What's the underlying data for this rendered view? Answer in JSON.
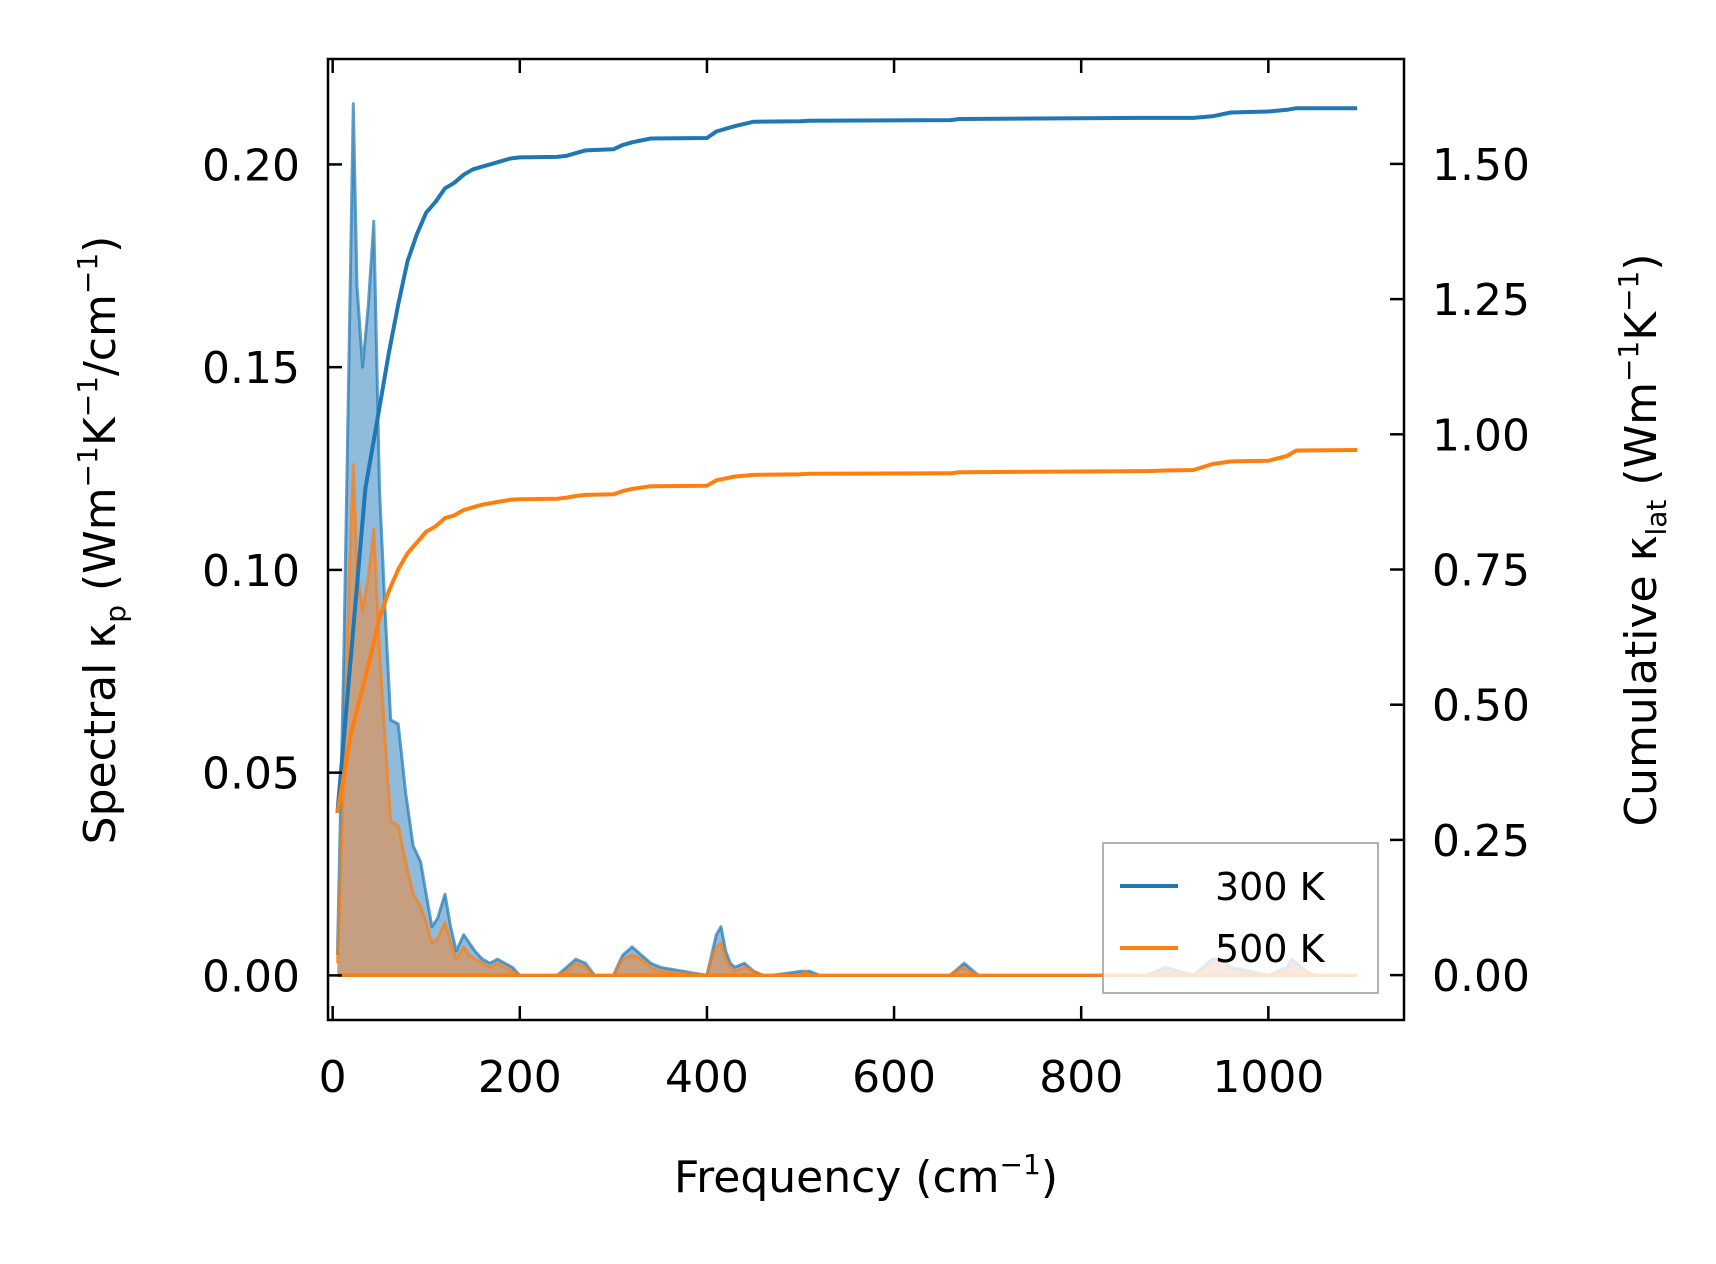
{
  "chart_data": {
    "type": "area",
    "xlabel": {
      "base": "Frequency (cm",
      "sup": "−1",
      "tail": ")"
    },
    "ylabel_left": {
      "p1": "Spectral κ",
      "sub": "p",
      "p2": " (Wm",
      "sup1": "−1",
      "p3": "K",
      "sup2": "−1",
      "p4": "/cm",
      "sup3": "−1",
      "p5": ")"
    },
    "ylabel_right": {
      "p1": "Cumulative κ",
      "sub": "lat",
      "p2": " (Wm",
      "sup1": "−1",
      "p3": "K",
      "sup2": "−1",
      "p4": ")"
    },
    "xlim": [
      -5,
      1145
    ],
    "ylim_left": [
      -0.011,
      0.226
    ],
    "ylim_right": [
      -0.083,
      1.694
    ],
    "x_ticks": [
      0,
      200,
      400,
      600,
      800,
      1000
    ],
    "x_tick_labels": [
      "0",
      "200",
      "400",
      "600",
      "800",
      "1000"
    ],
    "y_left_ticks": [
      0.0,
      0.05,
      0.1,
      0.15,
      0.2
    ],
    "y_left_tick_labels": [
      "0.00",
      "0.05",
      "0.10",
      "0.15",
      "0.20"
    ],
    "y_right_ticks": [
      0.0,
      0.25,
      0.5,
      0.75,
      1.0,
      1.25,
      1.5
    ],
    "y_right_tick_labels": [
      "0.00",
      "0.25",
      "0.50",
      "0.75",
      "1.00",
      "1.25",
      "1.50"
    ],
    "legend": {
      "position": "lower-right",
      "entries": [
        "300 K",
        "500 K"
      ]
    },
    "colors": {
      "s300": "#1f77b4",
      "s500": "#ff7f0e",
      "fill300": "#6aa4d1",
      "fill500": "#cf9a6f"
    },
    "series": [
      {
        "name": "300 K",
        "spectral": {
          "x": [
            5,
            12,
            18,
            22,
            26,
            32,
            38,
            44,
            50,
            56,
            62,
            70,
            78,
            86,
            94,
            100,
            106,
            112,
            120,
            126,
            132,
            140,
            146,
            152,
            160,
            168,
            176,
            184,
            192,
            200,
            220,
            240,
            250,
            260,
            270,
            280,
            290,
            300,
            310,
            320,
            330,
            340,
            350,
            400,
            405,
            410,
            415,
            420,
            425,
            430,
            440,
            450,
            460,
            470,
            500,
            505,
            510,
            520,
            540,
            560,
            660,
            665,
            670,
            675,
            680,
            690,
            870,
            880,
            890,
            920,
            930,
            940,
            950,
            960,
            1000,
            1010,
            1020,
            1025,
            1030,
            1040,
            1050,
            1060,
            1095
          ],
          "y": [
            0.005,
            0.08,
            0.16,
            0.215,
            0.17,
            0.15,
            0.165,
            0.186,
            0.12,
            0.09,
            0.063,
            0.062,
            0.045,
            0.032,
            0.028,
            0.02,
            0.012,
            0.014,
            0.02,
            0.012,
            0.006,
            0.01,
            0.008,
            0.006,
            0.004,
            0.003,
            0.004,
            0.003,
            0.002,
            0.0,
            0.0,
            0.0,
            0.002,
            0.004,
            0.003,
            0.0,
            0.0,
            0.0,
            0.005,
            0.007,
            0.005,
            0.003,
            0.002,
            0.0,
            0.005,
            0.01,
            0.012,
            0.006,
            0.003,
            0.002,
            0.003,
            0.001,
            0.0,
            0.0,
            0.001,
            0.001,
            0.001,
            0.0,
            0.0,
            0.0,
            0.0,
            0.001,
            0.002,
            0.003,
            0.002,
            0.0,
            0.0,
            0.001,
            0.002,
            0.0,
            0.002,
            0.004,
            0.004,
            0.002,
            0.0,
            0.001,
            0.002,
            0.004,
            0.003,
            0.001,
            0.0,
            0.0,
            0.0
          ]
        },
        "cumulative": {
          "x": [
            5,
            20,
            35,
            50,
            60,
            70,
            80,
            90,
            100,
            110,
            120,
            130,
            140,
            150,
            160,
            170,
            180,
            190,
            200,
            240,
            250,
            260,
            270,
            300,
            310,
            320,
            340,
            400,
            410,
            430,
            450,
            500,
            510,
            660,
            670,
            870,
            890,
            920,
            940,
            960,
            1000,
            1020,
            1030,
            1095
          ],
          "y": [
            0.3,
            0.6,
            0.9,
            1.05,
            1.15,
            1.24,
            1.32,
            1.37,
            1.41,
            1.43,
            1.455,
            1.465,
            1.48,
            1.49,
            1.495,
            1.5,
            1.505,
            1.51,
            1.512,
            1.513,
            1.515,
            1.52,
            1.525,
            1.527,
            1.535,
            1.54,
            1.547,
            1.548,
            1.56,
            1.57,
            1.578,
            1.579,
            1.58,
            1.581,
            1.583,
            1.585,
            1.585,
            1.585,
            1.588,
            1.595,
            1.597,
            1.6,
            1.603,
            1.603
          ]
        }
      },
      {
        "name": "500 K",
        "spectral": {
          "x": [
            5,
            12,
            18,
            22,
            26,
            32,
            38,
            44,
            50,
            56,
            62,
            70,
            78,
            86,
            94,
            100,
            106,
            112,
            120,
            126,
            132,
            140,
            146,
            152,
            160,
            168,
            176,
            184,
            192,
            200,
            220,
            240,
            250,
            260,
            270,
            280,
            290,
            300,
            310,
            320,
            330,
            340,
            350,
            400,
            405,
            410,
            415,
            420,
            425,
            430,
            440,
            450,
            460,
            470,
            500,
            505,
            510,
            520,
            540,
            560,
            660,
            665,
            670,
            675,
            680,
            690,
            870,
            880,
            890,
            920,
            930,
            940,
            950,
            960,
            1000,
            1010,
            1020,
            1025,
            1030,
            1040,
            1050,
            1060,
            1095
          ],
          "y": [
            0.003,
            0.05,
            0.1,
            0.126,
            0.1,
            0.09,
            0.098,
            0.11,
            0.08,
            0.058,
            0.038,
            0.037,
            0.028,
            0.02,
            0.017,
            0.013,
            0.008,
            0.009,
            0.013,
            0.008,
            0.004,
            0.007,
            0.005,
            0.004,
            0.003,
            0.002,
            0.003,
            0.002,
            0.001,
            0.0,
            0.0,
            0.0,
            0.001,
            0.003,
            0.002,
            0.0,
            0.0,
            0.0,
            0.004,
            0.005,
            0.004,
            0.002,
            0.001,
            0.0,
            0.004,
            0.007,
            0.008,
            0.004,
            0.002,
            0.001,
            0.002,
            0.001,
            0.0,
            0.0,
            0.0,
            0.001,
            0.0,
            0.0,
            0.0,
            0.0,
            0.0,
            0.001,
            0.0015,
            0.002,
            0.001,
            0.0,
            0.0,
            0.0005,
            0.001,
            0.0,
            0.001,
            0.003,
            0.003,
            0.001,
            0.0,
            0.0005,
            0.001,
            0.003,
            0.002,
            0.001,
            0.0,
            0.0,
            0.0
          ]
        },
        "cumulative": {
          "x": [
            5,
            20,
            35,
            50,
            60,
            70,
            80,
            90,
            100,
            110,
            120,
            130,
            140,
            150,
            160,
            170,
            180,
            190,
            200,
            240,
            250,
            260,
            270,
            300,
            310,
            320,
            340,
            400,
            410,
            430,
            450,
            500,
            510,
            660,
            670,
            870,
            890,
            920,
            940,
            960,
            1000,
            1020,
            1030,
            1095
          ],
          "y": [
            0.3,
            0.45,
            0.55,
            0.66,
            0.71,
            0.75,
            0.78,
            0.8,
            0.82,
            0.83,
            0.845,
            0.85,
            0.86,
            0.865,
            0.87,
            0.873,
            0.876,
            0.879,
            0.88,
            0.881,
            0.883,
            0.886,
            0.888,
            0.889,
            0.895,
            0.899,
            0.904,
            0.905,
            0.915,
            0.922,
            0.925,
            0.926,
            0.927,
            0.928,
            0.93,
            0.932,
            0.933,
            0.934,
            0.945,
            0.95,
            0.951,
            0.96,
            0.97,
            0.971
          ]
        }
      }
    ]
  }
}
